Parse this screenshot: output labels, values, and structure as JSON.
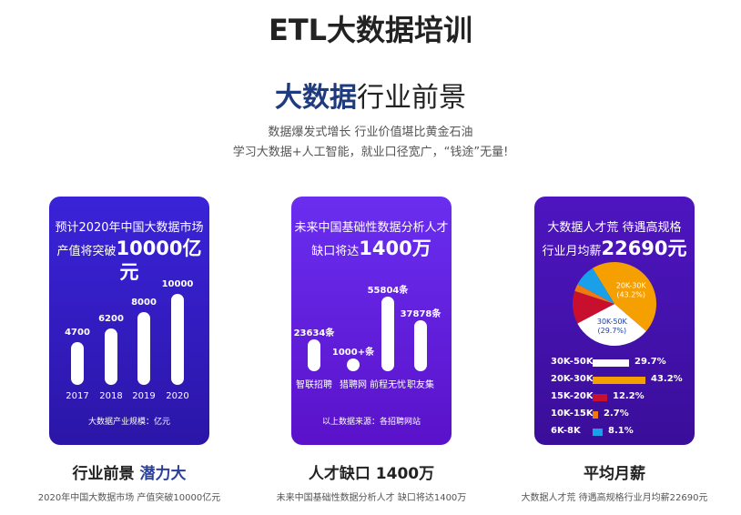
{
  "page": {
    "title": "ETL大数据培训"
  },
  "section": {
    "title_bold": "大数据",
    "title_rest": "行业前景",
    "subtitle_line1": "数据爆发式增长 行业价值堪比黄金石油",
    "subtitle_line2": "学习大数据+人工智能，就业口径宽广，“钱途”无量!"
  },
  "cards": [
    {
      "head_line1": "预计2020年中国大数据市场",
      "head_line2_prefix": "产值将突破",
      "head_big": "10000亿元",
      "note": "大数据产业规模：亿元",
      "caption_plain": "行业前景 ",
      "caption_highlight": "潜力大",
      "desc": "2020年中国大数据市场 产值突破10000亿元"
    },
    {
      "head_line1": "未来中国基础性数据分析人才",
      "head_line2_prefix": "缺口将达",
      "head_big": "1400万",
      "note": "以上数据来源：各招聘网站",
      "caption_plain": "人才缺口 1400万",
      "caption_highlight": "",
      "desc": "未来中国基础性数据分析人才 缺口将达1400万"
    },
    {
      "head_line1": "大数据人才荒 待遇高规格",
      "head_line2_prefix": "行业月均薪",
      "head_big": "22690元",
      "note": "",
      "caption_plain": "平均月薪",
      "caption_highlight": "",
      "desc": "大数据人才荒 待遇高规格行业月均薪22690元"
    }
  ],
  "chart_data": [
    {
      "type": "bar",
      "categories": [
        "2017",
        "2018",
        "2019",
        "2020"
      ],
      "values": [
        4700,
        6200,
        8000,
        10000
      ],
      "value_labels": [
        "4700",
        "6200",
        "8000",
        "10000"
      ],
      "title": "",
      "xlabel": "",
      "ylabel": "大数据产业规模：亿元",
      "ylim": [
        0,
        10000
      ]
    },
    {
      "type": "bar",
      "categories": [
        "智联招聘",
        "猎聘网",
        "前程无忧",
        "职友集"
      ],
      "values": [
        23634,
        1000,
        55804,
        37878
      ],
      "value_labels": [
        "23634条",
        "1000+条",
        "55804条",
        "37878条"
      ],
      "title": "",
      "xlabel": "",
      "ylabel": "",
      "ylim": [
        0,
        55804
      ]
    },
    {
      "type": "pie",
      "categories": [
        "20K-30K",
        "30K-50K",
        "15K-20K",
        "10K-15K",
        "6K-8K"
      ],
      "values": [
        43.2,
        29.7,
        12.2,
        2.7,
        8.1
      ],
      "value_labels": [
        "43.2%",
        "29.7%",
        "12.2%",
        "2.7%",
        "8.1%"
      ],
      "colors": [
        "#f5a000",
        "#ffffff",
        "#c8102e",
        "#f07a10",
        "#1aa0e8"
      ],
      "legend_order": [
        "30K-50K",
        "20K-30K",
        "15K-20K",
        "10K-15K",
        "6K-8K"
      ],
      "title": "",
      "xlabel": "",
      "ylabel": ""
    }
  ]
}
